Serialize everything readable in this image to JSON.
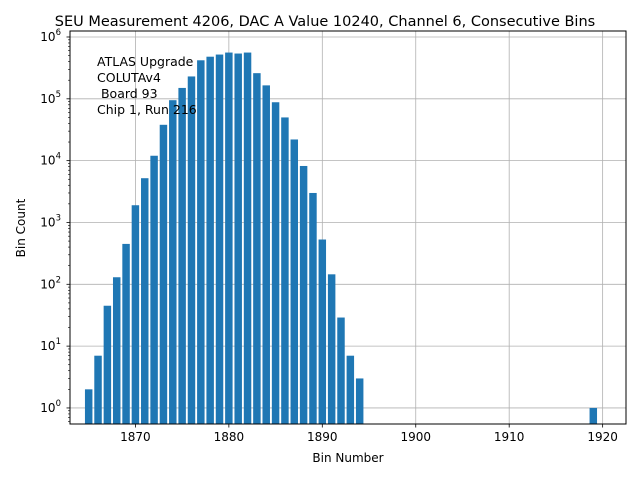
{
  "chart_data": {
    "type": "bar",
    "title": "SEU Measurement 4206, DAC A Value 10240, Channel 6, Consecutive Bins",
    "xlabel": "Bin Number",
    "ylabel": "Bin Count",
    "yscale": "log",
    "xlim": [
      1863,
      1922.5
    ],
    "ylim": [
      0.55,
      1250000
    ],
    "x_ticks": [
      1870,
      1880,
      1890,
      1900,
      1910,
      1920
    ],
    "y_ticks": [
      {
        "value": 1,
        "base": "10",
        "exp": "0"
      },
      {
        "value": 10,
        "base": "10",
        "exp": "1"
      },
      {
        "value": 100,
        "base": "10",
        "exp": "2"
      },
      {
        "value": 1000,
        "base": "10",
        "exp": "3"
      },
      {
        "value": 10000,
        "base": "10",
        "exp": "4"
      },
      {
        "value": 100000,
        "base": "10",
        "exp": "5"
      },
      {
        "value": 1000000,
        "base": "10",
        "exp": "6"
      }
    ],
    "grid": true,
    "bar_color": "#1f77b4",
    "bins": [
      1865,
      1866,
      1867,
      1868,
      1869,
      1870,
      1871,
      1872,
      1873,
      1874,
      1875,
      1876,
      1877,
      1878,
      1879,
      1880,
      1881,
      1882,
      1883,
      1884,
      1885,
      1886,
      1887,
      1888,
      1889,
      1890,
      1891,
      1892,
      1893,
      1894,
      1919
    ],
    "values": [
      2,
      7,
      45,
      130,
      450,
      1900,
      5200,
      12000,
      38000,
      95000,
      150000,
      230000,
      420000,
      480000,
      520000,
      560000,
      540000,
      560000,
      260000,
      165000,
      88000,
      50000,
      22000,
      8200,
      3000,
      530,
      145,
      29,
      7,
      3,
      1
    ],
    "annotation": [
      "ATLAS Upgrade",
      "COLUTAv4",
      " Board 93",
      "Chip 1, Run 216"
    ]
  }
}
